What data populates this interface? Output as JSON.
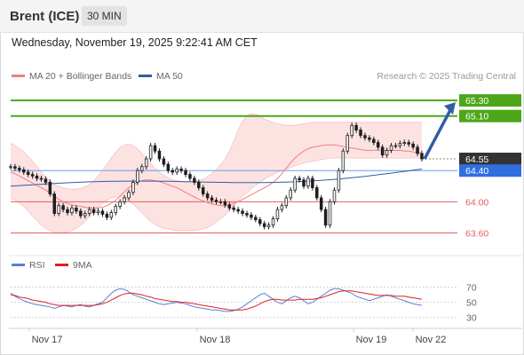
{
  "header": {
    "symbol": "Brent (ICE)",
    "timeframe": "30 MIN"
  },
  "datetime": "Wednesday, November 19, 2025 9:22:41 AM CET",
  "copyright": "Research © 2025 Trading Central",
  "colors": {
    "candle": "#1e1e1e",
    "ma20": "#f08080",
    "bollinger_fill": "#fde2e2",
    "ma50": "#2f5fa5",
    "resistance": "#4da619",
    "support": "#e06060",
    "pivot": "#6b9be5",
    "arrow": "#2f5fa5",
    "last_price_bg": "#333333",
    "rsi": "#5b7fd6",
    "rsi_ma": "#e02020"
  },
  "chart_data": [
    {
      "type": "candlestick",
      "legend": [
        {
          "name": "MA 20 + Bollinger Bands",
          "color": "#f08080"
        },
        {
          "name": "MA 50",
          "color": "#2f5fa5"
        }
      ],
      "x_labels": [
        "Nov 17",
        "Nov 18",
        "Nov 19",
        "Nov 22"
      ],
      "y_visible_range": [
        63.4,
        65.45
      ],
      "levels": [
        {
          "value": 65.3,
          "label": "65.30",
          "kind": "resistance"
        },
        {
          "value": 65.1,
          "label": "65.10",
          "kind": "resistance"
        },
        {
          "value": 64.55,
          "label": "64.55",
          "kind": "last"
        },
        {
          "value": 64.4,
          "label": "64.40",
          "kind": "pivot"
        },
        {
          "value": 64.0,
          "label": "64.00",
          "kind": "support"
        },
        {
          "value": 63.6,
          "label": "63.60",
          "kind": "support"
        }
      ],
      "forecast_arrow": {
        "from": 64.55,
        "to": 65.3
      },
      "close": [
        64.45,
        64.43,
        64.41,
        64.38,
        64.35,
        64.33,
        64.3,
        64.29,
        64.25,
        64.1,
        63.85,
        63.95,
        63.9,
        63.86,
        63.92,
        63.88,
        63.82,
        63.85,
        63.9,
        63.86,
        63.88,
        63.84,
        63.8,
        63.86,
        63.94,
        64.0,
        64.05,
        64.12,
        64.25,
        64.4,
        64.45,
        64.55,
        64.72,
        64.65,
        64.55,
        64.48,
        64.4,
        64.38,
        64.42,
        64.4,
        64.35,
        64.3,
        64.25,
        64.18,
        64.1,
        64.05,
        64.02,
        64.0,
        64.0,
        63.96,
        63.92,
        63.9,
        63.88,
        63.85,
        63.83,
        63.8,
        63.77,
        63.72,
        63.68,
        63.7,
        63.78,
        63.9,
        63.95,
        64.05,
        64.15,
        64.3,
        64.28,
        64.2,
        64.3,
        64.18,
        64.05,
        63.9,
        63.7,
        64.0,
        64.15,
        64.4,
        64.65,
        64.85,
        64.98,
        64.92,
        64.85,
        64.82,
        64.8,
        64.76,
        64.7,
        64.6,
        64.66,
        64.72,
        64.72,
        64.75,
        64.76,
        64.74,
        64.7,
        64.62,
        64.55
      ],
      "ma20": [
        64.38,
        64.36,
        64.33,
        64.3,
        64.27,
        64.24,
        64.21,
        64.18,
        64.15,
        64.11,
        64.07,
        64.03,
        64.0,
        63.98,
        63.96,
        63.95,
        63.94,
        63.93,
        63.92,
        63.92,
        63.92,
        63.93,
        63.95,
        63.98,
        64.02,
        64.07,
        64.13,
        64.18,
        64.22,
        64.25,
        64.27,
        64.28,
        64.28,
        64.27,
        64.26,
        64.24,
        64.22,
        64.2,
        64.18,
        64.15,
        64.12,
        64.09,
        64.06,
        64.03,
        64.01,
        63.99,
        63.97,
        63.96,
        63.95,
        63.95,
        63.96,
        63.98,
        64.0,
        64.03,
        64.06,
        64.09,
        64.12,
        64.15,
        64.18,
        64.21,
        64.25,
        64.3,
        64.36,
        64.43,
        64.5,
        64.56,
        64.61,
        64.65,
        64.68,
        64.7,
        64.71,
        64.72,
        64.73,
        64.73,
        64.73,
        64.72,
        64.71,
        64.7,
        64.69,
        64.68,
        64.67,
        64.66,
        64.66,
        64.66,
        64.66,
        64.66,
        64.66,
        64.66,
        64.66,
        64.66,
        64.65,
        64.65,
        64.64,
        64.63,
        64.62
      ],
      "bb_upper": [
        64.75,
        64.72,
        64.68,
        64.64,
        64.58,
        64.52,
        64.45,
        64.38,
        64.32,
        64.27,
        64.22,
        64.2,
        64.18,
        64.17,
        64.16,
        64.16,
        64.17,
        64.19,
        64.22,
        64.27,
        64.33,
        64.4,
        64.48,
        64.56,
        64.63,
        64.7,
        64.73,
        64.74,
        64.72,
        64.68,
        64.62,
        64.55,
        64.49,
        64.43,
        64.38,
        64.34,
        64.31,
        64.28,
        64.27,
        64.26,
        64.25,
        64.25,
        64.26,
        64.27,
        64.29,
        64.32,
        64.36,
        64.41,
        64.47,
        64.55,
        64.65,
        64.78,
        64.92,
        65.03,
        65.1,
        65.13,
        65.12,
        65.1,
        65.06,
        65.04,
        65.02,
        65.0,
        64.99,
        64.98,
        64.98,
        64.98,
        64.99,
        65.0,
        65.01,
        65.02,
        65.02,
        65.02,
        65.02,
        65.02,
        65.02,
        65.02,
        65.02,
        65.02,
        65.02,
        65.02,
        65.02,
        65.02,
        65.02,
        65.02,
        65.02,
        65.02,
        65.02,
        65.02,
        65.02,
        65.02,
        65.02,
        65.02,
        65.02,
        65.02,
        65.02
      ],
      "bb_lower": [
        64.05,
        64.02,
        63.98,
        63.94,
        63.88,
        63.82,
        63.76,
        63.7,
        63.66,
        63.63,
        63.61,
        63.6,
        63.6,
        63.61,
        63.63,
        63.66,
        63.7,
        63.75,
        63.81,
        63.87,
        63.93,
        63.98,
        64.02,
        64.05,
        64.06,
        64.06,
        64.04,
        64.01,
        63.97,
        63.92,
        63.86,
        63.8,
        63.75,
        63.71,
        63.68,
        63.66,
        63.65,
        63.64,
        63.63,
        63.63,
        63.63,
        63.63,
        63.63,
        63.64,
        63.65,
        63.67,
        63.7,
        63.74,
        63.78,
        63.83,
        63.89,
        63.95,
        64.01,
        64.07,
        64.12,
        64.17,
        64.21,
        64.25,
        64.29,
        64.32,
        64.35,
        64.38,
        64.4,
        64.42,
        64.44,
        64.46,
        64.48,
        64.5,
        64.51,
        64.52,
        64.53,
        64.54,
        64.55,
        64.56,
        64.56,
        64.56,
        64.56,
        64.56,
        64.56,
        64.56,
        64.56,
        64.56,
        64.56,
        64.56,
        64.56,
        64.56,
        64.56,
        64.56,
        64.56,
        64.56,
        64.56,
        64.56,
        64.56,
        64.56,
        64.56
      ],
      "ma50_start": 64.2,
      "ma50_end": 64.42
    },
    {
      "type": "line",
      "legend": [
        {
          "name": "RSI",
          "color": "#5b7fd6"
        },
        {
          "name": "9MA",
          "color": "#e02020"
        }
      ],
      "y_ticks": [
        70,
        50,
        30
      ],
      "y_range": [
        25,
        80
      ],
      "rsi": [
        62,
        58,
        55,
        52,
        50,
        48,
        47,
        46,
        45,
        44,
        42,
        44,
        46,
        45,
        44,
        46,
        47,
        45,
        44,
        46,
        48,
        50,
        56,
        62,
        66,
        68,
        67,
        64,
        60,
        58,
        56,
        54,
        52,
        50,
        48,
        47,
        48,
        49,
        50,
        49,
        48,
        46,
        44,
        43,
        42,
        41,
        40,
        40,
        39,
        38,
        38,
        39,
        41,
        44,
        48,
        52,
        56,
        60,
        62,
        58,
        54,
        50,
        48,
        52,
        56,
        58,
        56,
        52,
        48,
        50,
        54,
        58,
        62,
        66,
        68,
        68,
        66,
        64,
        62,
        58,
        56,
        54,
        52,
        54,
        56,
        58,
        60,
        58,
        56,
        54,
        52,
        50,
        48,
        47,
        46
      ],
      "rsi_ma": [
        60,
        59,
        57,
        56,
        55,
        53,
        52,
        51,
        50,
        48,
        47,
        46,
        46,
        46,
        46,
        46,
        46,
        46,
        46,
        46,
        47,
        48,
        50,
        53,
        56,
        59,
        61,
        62,
        62,
        61,
        60,
        58,
        57,
        55,
        54,
        53,
        52,
        51,
        51,
        50,
        50,
        49,
        48,
        47,
        46,
        45,
        44,
        43,
        42,
        41,
        40,
        40,
        40,
        40,
        41,
        43,
        45,
        48,
        51,
        53,
        54,
        54,
        53,
        53,
        53,
        53,
        54,
        54,
        54,
        54,
        55,
        56,
        58,
        60,
        62,
        64,
        65,
        65,
        65,
        64,
        63,
        62,
        61,
        60,
        59,
        59,
        59,
        59,
        58,
        58,
        58,
        57,
        56,
        55,
        54
      ]
    }
  ]
}
